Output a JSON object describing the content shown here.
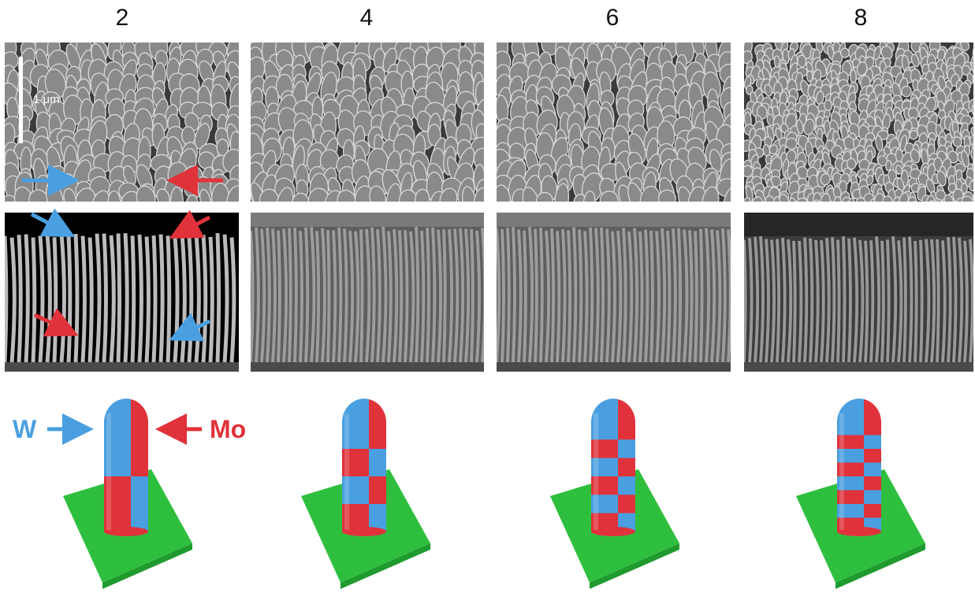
{
  "figure": {
    "columns": [
      {
        "label": "2",
        "segments_per_side": 2
      },
      {
        "label": "4",
        "segments_per_side": 4
      },
      {
        "label": "6",
        "segments_per_side": 6
      },
      {
        "label": "8",
        "segments_per_side": 8
      }
    ],
    "scale_bar_label": "1 μm",
    "legend": {
      "w_label": "W",
      "mo_label": "Mo",
      "w_color": "#4a9fe0",
      "mo_color": "#e0323a",
      "substrate_color": "#2fbf3f"
    }
  }
}
